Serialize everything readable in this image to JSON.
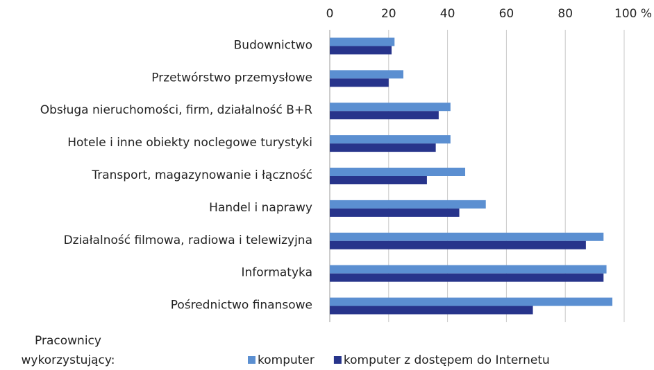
{
  "chart_data": {
    "type": "bar",
    "orientation": "horizontal",
    "categories": [
      "Budownictwo",
      "Przetwórstwo przemysłowe",
      "Obsługa nieruchomości, firm, działalność B+R",
      "Hotele i inne obiekty noclegowe turystyki",
      "Transport, magazynowanie i łączność",
      "Handel i naprawy",
      "Działalność filmowa, radiowa i telewizyjna",
      "Informatyka",
      "Pośrednictwo finansowe"
    ],
    "series": [
      {
        "name": "komputer",
        "color": "#5b8fd1",
        "values": [
          22,
          25,
          41,
          41,
          46,
          53,
          93,
          94,
          96
        ]
      },
      {
        "name": "komputer z dostępem do Internetu",
        "color": "#27348b",
        "values": [
          21,
          20,
          37,
          36,
          33,
          44,
          87,
          93,
          69
        ]
      }
    ],
    "xlim": [
      0,
      100
    ],
    "xticks": [
      0,
      20,
      40,
      60,
      80,
      {
        "value": 100,
        "label": "100 %"
      }
    ],
    "grid": true,
    "legend_title": "Pracownicy wykorzystujący:",
    "legend": "bottom"
  }
}
